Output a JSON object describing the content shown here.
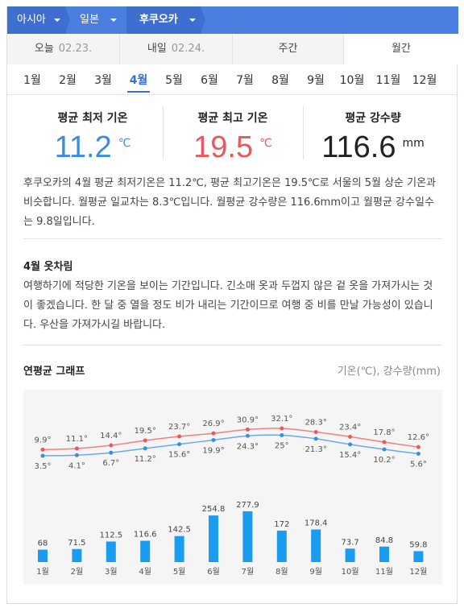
{
  "breadcrumb": [
    "아시아",
    "일본",
    "후쿠오카"
  ],
  "day_tabs": [
    {
      "label": "오늘",
      "date": "02.23."
    },
    {
      "label": "내일",
      "date": "02.24."
    },
    {
      "label": "주간",
      "date": ""
    },
    {
      "label": "월간",
      "date": ""
    }
  ],
  "month_tabs": [
    "1월",
    "2월",
    "3월",
    "4월",
    "5월",
    "6월",
    "7월",
    "8월",
    "9월",
    "10월",
    "11월",
    "12월"
  ],
  "active_month": "4월",
  "stats": {
    "min_label": "평균 최저 기온",
    "min_value": "11.2",
    "min_unit": "℃",
    "max_label": "평균 최고 기온",
    "max_value": "19.5",
    "max_unit": "℃",
    "rain_label": "평균 강수량",
    "rain_value": "116.6",
    "rain_unit": "mm"
  },
  "summary": "후쿠오카의 4월 평균 최저기온은 11.2℃, 평균 최고기온은 19.5℃로 서울의 5월 상순 기온과 비슷합니다. 월평균 일교차는 8.3℃입니다. 월평균 강수량은 116.6mm이고 월평균 강수일수는 9.8일입니다.",
  "clothing": {
    "title": "4월 옷차림",
    "text": "여행하기에 적당한 기온을 보이는 기간입니다. 긴소매 옷과 두껍지 않은 겉 옷을 가져가시는 것이 좋겠습니다. 한 달 중 열을 정도 비가 내리는 기간이므로 여행 중 비를 만날 가능성이 있습니다. 우산을 가져가시길 바랍니다."
  },
  "graph": {
    "title": "연평균 그래프",
    "legend": "기온(℃), 강수량(mm)"
  },
  "colors": {
    "accent": "#3a6fd8",
    "min_temp": "#3b8de0",
    "max_temp": "#e8585e",
    "bar": "#1a9cf0",
    "high_line": "#f08080",
    "low_line": "#6aa8ee"
  },
  "chart_data": {
    "type": "line",
    "categories": [
      "1월",
      "2월",
      "3월",
      "4월",
      "5월",
      "6월",
      "7월",
      "8월",
      "9월",
      "10월",
      "11월",
      "12월"
    ],
    "series": [
      {
        "values": [
          9.9,
          11.1,
          14.4,
          19.5,
          23.7,
          26.9,
          30.9,
          32.1,
          28.3,
          23.4,
          17.8,
          12.6
        ]
      },
      {
        "values": [
          3.5,
          4.1,
          6.7,
          11.2,
          15.6,
          19.9,
          24.3,
          25,
          21.3,
          15.4,
          10.2,
          5.6
        ]
      },
      {
        "type": "bar",
        "values": [
          68,
          71.5,
          112.5,
          116.6,
          142.5,
          254.8,
          277.9,
          172,
          178.4,
          73.7,
          84.8,
          59.8
        ]
      }
    ],
    "labels": {
      "high": [
        "9.9°",
        "11.1°",
        "14.4°",
        "19.5°",
        "23.7°",
        "26.9°",
        "30.9°",
        "32.1°",
        "28.3°",
        "23.4°",
        "17.8°",
        "12.6°"
      ],
      "low": [
        "3.5°",
        "4.1°",
        "6.7°",
        "11.2°",
        "15.6°",
        "19.9°",
        "24.3°",
        "25°",
        "21.3°",
        "15.4°",
        "10.2°",
        "5.6°"
      ],
      "rain": [
        "68",
        "71.5",
        "112.5",
        "116.6",
        "142.5",
        "254.8",
        "277.9",
        "172",
        "178.4",
        "73.7",
        "84.8",
        "59.8"
      ]
    }
  }
}
